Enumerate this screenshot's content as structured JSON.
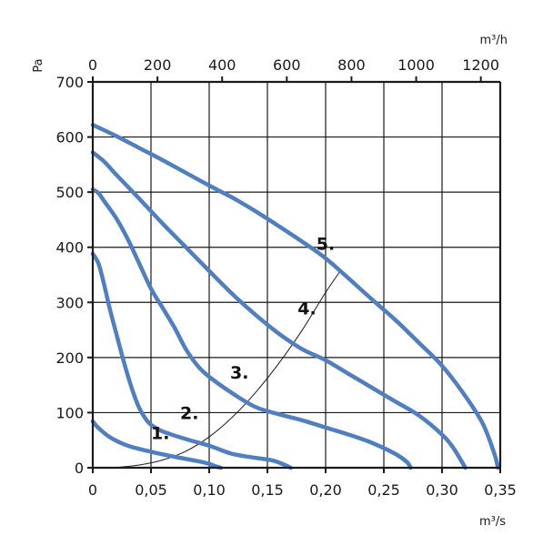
{
  "chart_data": {
    "type": "line",
    "title": "",
    "xlabel": "m³/s",
    "x2label": "m³/h",
    "ylabel": "Pa",
    "xlim": [
      0,
      0.35
    ],
    "x2lim": [
      0,
      1260
    ],
    "ylim": [
      0,
      700
    ],
    "x_ticks": [
      0,
      0.05,
      0.1,
      0.15,
      0.2,
      0.25,
      0.3,
      0.35
    ],
    "x_tick_labels": [
      "0",
      "0,05",
      "0,10",
      "0,15",
      "0,20",
      "0,25",
      "0,30",
      "0,35"
    ],
    "x2_ticks": [
      0,
      200,
      400,
      600,
      800,
      1000,
      1200
    ],
    "x2_tick_labels": [
      "0",
      "200",
      "400",
      "600",
      "800",
      "1000",
      "1200"
    ],
    "y_ticks": [
      0,
      100,
      200,
      300,
      400,
      500,
      600,
      700
    ],
    "y_tick_labels": [
      "0",
      "100",
      "200",
      "300",
      "400",
      "500",
      "600",
      "700"
    ],
    "grid": true,
    "series_color": "#4f7fc1",
    "series": [
      {
        "label": "1.",
        "x": [
          0.0,
          0.005,
          0.015,
          0.03,
          0.05,
          0.07,
          0.09,
          0.1,
          0.105,
          0.11
        ],
        "y": [
          84,
          72,
          55,
          40,
          29,
          20,
          12,
          7,
          3,
          0
        ],
        "label_at": [
          0.058,
          52
        ]
      },
      {
        "label": "2.",
        "x": [
          0.0,
          0.005,
          0.01,
          0.015,
          0.02,
          0.025,
          0.03,
          0.035,
          0.04,
          0.045,
          0.05,
          0.06,
          0.08,
          0.1,
          0.12,
          0.14,
          0.155,
          0.165,
          0.17
        ],
        "y": [
          388,
          370,
          330,
          285,
          245,
          205,
          168,
          135,
          108,
          90,
          78,
          66,
          52,
          40,
          25,
          18,
          13,
          5,
          0
        ],
        "label_at": [
          0.083,
          88
        ]
      },
      {
        "label": "3.",
        "x": [
          0.0,
          0.005,
          0.01,
          0.02,
          0.03,
          0.04,
          0.05,
          0.06,
          0.07,
          0.08,
          0.09,
          0.1,
          0.12,
          0.14,
          0.16,
          0.18,
          0.2,
          0.22,
          0.24,
          0.26,
          0.27,
          0.273
        ],
        "y": [
          505,
          498,
          483,
          453,
          415,
          370,
          325,
          290,
          255,
          215,
          185,
          165,
          135,
          110,
          97,
          86,
          73,
          60,
          45,
          25,
          10,
          0
        ],
        "label_at": [
          0.126,
          162
        ]
      },
      {
        "label": "4.",
        "x": [
          0.0,
          0.01,
          0.02,
          0.04,
          0.06,
          0.08,
          0.1,
          0.12,
          0.14,
          0.16,
          0.18,
          0.2,
          0.22,
          0.24,
          0.26,
          0.28,
          0.3,
          0.31,
          0.32
        ],
        "y": [
          572,
          555,
          532,
          488,
          443,
          400,
          357,
          315,
          277,
          243,
          215,
          195,
          170,
          145,
          120,
          95,
          60,
          35,
          0
        ],
        "label_at": [
          0.184,
          278
        ]
      },
      {
        "label": "5.",
        "x": [
          0.0,
          0.02,
          0.04,
          0.06,
          0.08,
          0.1,
          0.12,
          0.14,
          0.16,
          0.18,
          0.2,
          0.22,
          0.24,
          0.26,
          0.28,
          0.3,
          0.32,
          0.335,
          0.345,
          0.348
        ],
        "y": [
          622,
          602,
          580,
          558,
          535,
          512,
          490,
          465,
          438,
          410,
          380,
          343,
          305,
          268,
          227,
          185,
          130,
          80,
          25,
          0
        ],
        "label_at": [
          0.2,
          395
        ]
      }
    ],
    "system_curve": {
      "x": [
        0.018,
        0.04,
        0.06,
        0.08,
        0.1,
        0.12,
        0.14,
        0.16,
        0.18,
        0.2,
        0.212
      ],
      "y": [
        0,
        5,
        14,
        30,
        56,
        92,
        137,
        190,
        250,
        318,
        355
      ]
    }
  }
}
